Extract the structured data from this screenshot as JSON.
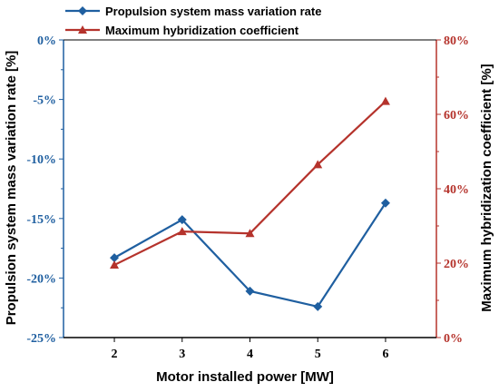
{
  "chart_data": {
    "type": "line",
    "x": [
      2,
      3,
      4,
      5,
      6
    ],
    "xlim": [
      1.25,
      6.75
    ],
    "x_ticks": [
      "2",
      "3",
      "4",
      "5",
      "6"
    ],
    "xlabel": "Motor installed power [MW]",
    "y_left": {
      "label": "Propulsion system mass variation rate [%]",
      "lim": [
        -25,
        0
      ],
      "ticks": [
        "-25%",
        "-20%",
        "-15%",
        "-10%",
        "-5%",
        "0%"
      ],
      "tick_values": [
        -25,
        -20,
        -15,
        -10,
        -5,
        0
      ],
      "color": "#1f5fa0"
    },
    "y_right": {
      "label": "Maximum hybridization coefficient [%]",
      "lim": [
        0,
        80
      ],
      "ticks": [
        "0%",
        "20%",
        "40%",
        "60%",
        "80%"
      ],
      "tick_values": [
        0,
        20,
        40,
        60,
        80
      ],
      "color": "#b5332c"
    },
    "series": [
      {
        "name": "Propulsion system mass variation rate",
        "axis": "left",
        "marker": "diamond",
        "color": "#1f5fa0",
        "values": [
          -18.3,
          -15.1,
          -21.1,
          -22.4,
          -13.7
        ]
      },
      {
        "name": "Maximum hybridization coefficient",
        "axis": "right",
        "marker": "triangle",
        "color": "#b5332c",
        "values": [
          19.5,
          28.5,
          28.0,
          46.5,
          63.5
        ]
      }
    ],
    "legend": "top-left",
    "grid": false
  }
}
